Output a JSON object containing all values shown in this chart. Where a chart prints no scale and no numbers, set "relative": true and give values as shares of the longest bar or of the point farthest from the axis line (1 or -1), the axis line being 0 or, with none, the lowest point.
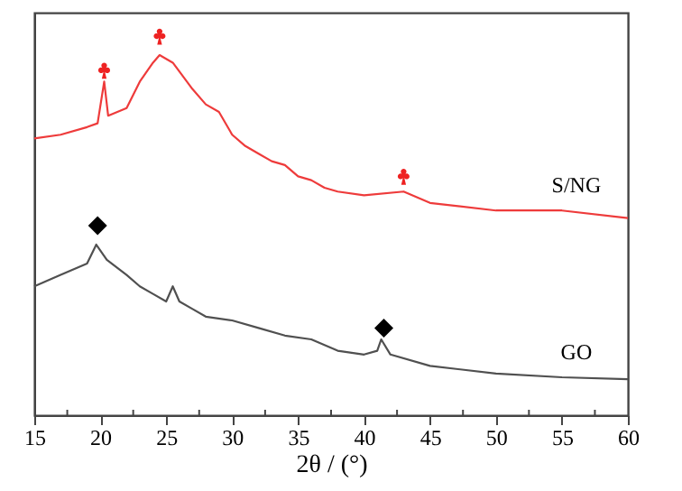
{
  "chart_data": {
    "type": "line",
    "relative": true,
    "xlabel": "2θ / (°)",
    "xlim": [
      15,
      60
    ],
    "xticks": [
      15,
      20,
      25,
      30,
      35,
      40,
      45,
      50,
      55,
      60
    ],
    "tick_labels": "x",
    "grid": false,
    "legend": false,
    "line_style": "solid",
    "marker": "none",
    "series": [
      {
        "name": "S/NG",
        "color": "#ee3b3b",
        "x": [
          15,
          17,
          19,
          19.8,
          20.3,
          20.6,
          22,
          23,
          24,
          24.5,
          25.5,
          27,
          28,
          29,
          30,
          31,
          32,
          33,
          34,
          35,
          36,
          37,
          38,
          40,
          43,
          45,
          50,
          55,
          60
        ],
        "values": [
          0.73,
          0.74,
          0.76,
          0.77,
          0.88,
          0.79,
          0.81,
          0.88,
          0.93,
          0.95,
          0.93,
          0.86,
          0.82,
          0.8,
          0.74,
          0.71,
          0.69,
          0.67,
          0.66,
          0.63,
          0.62,
          0.6,
          0.59,
          0.58,
          0.59,
          0.56,
          0.54,
          0.54,
          0.52
        ]
      },
      {
        "name": "GO",
        "color": "#505050",
        "x": [
          15,
          17,
          19,
          19.7,
          20.5,
          22,
          23,
          24,
          25,
          25.5,
          26,
          27,
          28,
          30,
          32,
          34,
          36,
          38,
          40,
          41,
          41.3,
          42,
          45,
          50,
          55,
          60
        ],
        "values": [
          0.34,
          0.37,
          0.4,
          0.45,
          0.41,
          0.37,
          0.34,
          0.32,
          0.3,
          0.34,
          0.3,
          0.28,
          0.26,
          0.25,
          0.23,
          0.21,
          0.2,
          0.17,
          0.16,
          0.17,
          0.2,
          0.16,
          0.13,
          0.11,
          0.1,
          0.095
        ]
      },
      {
        "type": "scatter",
        "color": "#ee2222",
        "x": [
          20.3,
          24.5,
          43
        ],
        "values": [
          0.91,
          1.0,
          0.63
        ]
      },
      {
        "type": "scatter",
        "marker": "diamond",
        "color": "#000000",
        "x": [
          19.8,
          41.5
        ],
        "values": [
          0.5,
          0.23
        ]
      }
    ]
  }
}
